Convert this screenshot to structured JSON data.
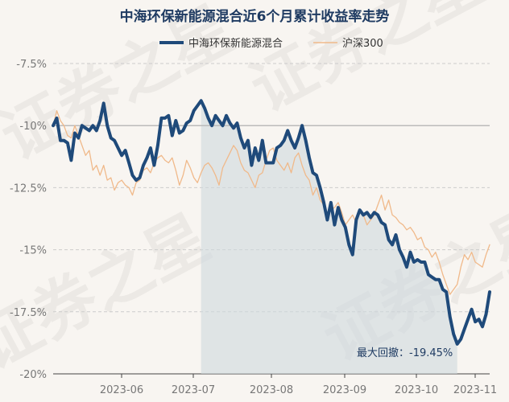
{
  "chart_data": {
    "type": "line",
    "title": "中海环保新能源混合近6个月累计收益率走势",
    "watermark": "证券之星",
    "x_labels": [
      "2023-06",
      "2023-07",
      "2023-08",
      "2023-09",
      "2023-10",
      "2023-11"
    ],
    "y_labels": [
      "-7.5%",
      "-10%",
      "-12.5%",
      "-15%",
      "-17.5%",
      "-20%"
    ],
    "ylim": [
      -20,
      -7.5
    ],
    "grid": "horizontal dashed",
    "legend_position": "top-center",
    "annotation": "最大回撤：-19.45%",
    "colors": {
      "fund": "#1f4a7a",
      "index": "#f0b98a",
      "drawdown_fill": "#cfd8de",
      "reference_line": "#bbbbbb",
      "background": "#f8f5f1"
    },
    "series": [
      {
        "name": "中海环保新能源混合",
        "values": [
          -10.0,
          -9.7,
          -10.6,
          -10.6,
          -10.7,
          -11.4,
          -10.3,
          -10.5,
          -10.0,
          -10.1,
          -10.2,
          -10.0,
          -10.2,
          -9.8,
          -9.1,
          -10.0,
          -10.5,
          -10.6,
          -10.9,
          -11.2,
          -11.0,
          -11.5,
          -12.0,
          -12.2,
          -12.1,
          -11.6,
          -11.3,
          -10.9,
          -11.6,
          -10.8,
          -9.7,
          -9.7,
          -9.6,
          -10.4,
          -9.8,
          -10.3,
          -10.2,
          -9.9,
          -9.8,
          -9.4,
          -9.2,
          -9.0,
          -9.3,
          -9.7,
          -10.0,
          -9.6,
          -9.8,
          -10.0,
          -9.6,
          -9.9,
          -10.1,
          -9.9,
          -10.5,
          -10.9,
          -10.6,
          -11.6,
          -10.9,
          -11.4,
          -10.6,
          -11.5,
          -11.5,
          -11.5,
          -10.9,
          -10.8,
          -10.6,
          -10.2,
          -10.6,
          -10.9,
          -10.5,
          -10.0,
          -10.6,
          -11.3,
          -11.9,
          -12.0,
          -12.5,
          -13.1,
          -13.8,
          -13.1,
          -14.0,
          -13.3,
          -13.8,
          -14.1,
          -14.8,
          -15.2,
          -13.8,
          -13.4,
          -13.6,
          -13.5,
          -13.7,
          -13.5,
          -13.6,
          -13.9,
          -14.0,
          -14.6,
          -14.8,
          -14.4,
          -15.0,
          -15.3,
          -15.7,
          -15.1,
          -15.5,
          -15.4,
          -15.5,
          -15.5,
          -16.0,
          -16.1,
          -16.2,
          -16.2,
          -16.6,
          -16.7,
          -17.7,
          -18.4,
          -18.8,
          -18.6,
          -18.2,
          -17.8,
          -17.4,
          -17.9,
          -17.8,
          -18.1,
          -17.6,
          -16.7
        ],
        "color": "#1f4a7a"
      },
      {
        "name": "沪深300",
        "values": [
          -10.0,
          -9.4,
          -9.8,
          -10.0,
          -10.4,
          -10.5,
          -10.0,
          -10.4,
          -10.8,
          -11.2,
          -11.0,
          -11.8,
          -11.6,
          -12.0,
          -11.6,
          -12.2,
          -12.1,
          -12.6,
          -12.3,
          -12.2,
          -12.4,
          -12.5,
          -12.8,
          -12.3,
          -12.2,
          -11.8,
          -11.7,
          -11.9,
          -11.5,
          -11.3,
          -11.2,
          -11.4,
          -11.5,
          -11.3,
          -11.8,
          -12.4,
          -12.0,
          -11.4,
          -11.7,
          -12.1,
          -12.3,
          -11.9,
          -11.6,
          -11.5,
          -11.7,
          -12.0,
          -12.4,
          -11.7,
          -11.4,
          -11.1,
          -10.8,
          -11.0,
          -11.5,
          -11.8,
          -11.9,
          -12.2,
          -12.5,
          -12.0,
          -11.9,
          -11.4,
          -11.0,
          -10.9,
          -11.4,
          -11.6,
          -11.8,
          -11.5,
          -11.9,
          -11.3,
          -11.1,
          -11.6,
          -12.0,
          -12.2,
          -12.8,
          -12.5,
          -13.0,
          -13.2,
          -13.6,
          -13.4,
          -13.3,
          -13.1,
          -13.5,
          -14.0,
          -13.8,
          -13.6,
          -13.9,
          -13.4,
          -13.6,
          -14.0,
          -13.8,
          -13.6,
          -13.2,
          -12.8,
          -13.4,
          -13.0,
          -13.6,
          -13.7,
          -13.9,
          -14.0,
          -14.2,
          -14.1,
          -14.3,
          -14.6,
          -14.5,
          -14.9,
          -15.0,
          -15.3,
          -15.1,
          -15.5,
          -16.0,
          -16.4,
          -16.8,
          -16.6,
          -16.4,
          -15.7,
          -15.2,
          -15.4,
          -15.1,
          -15.5,
          -15.6,
          -15.7,
          -15.2,
          -14.8
        ],
        "color": "#f0b98a"
      }
    ]
  }
}
